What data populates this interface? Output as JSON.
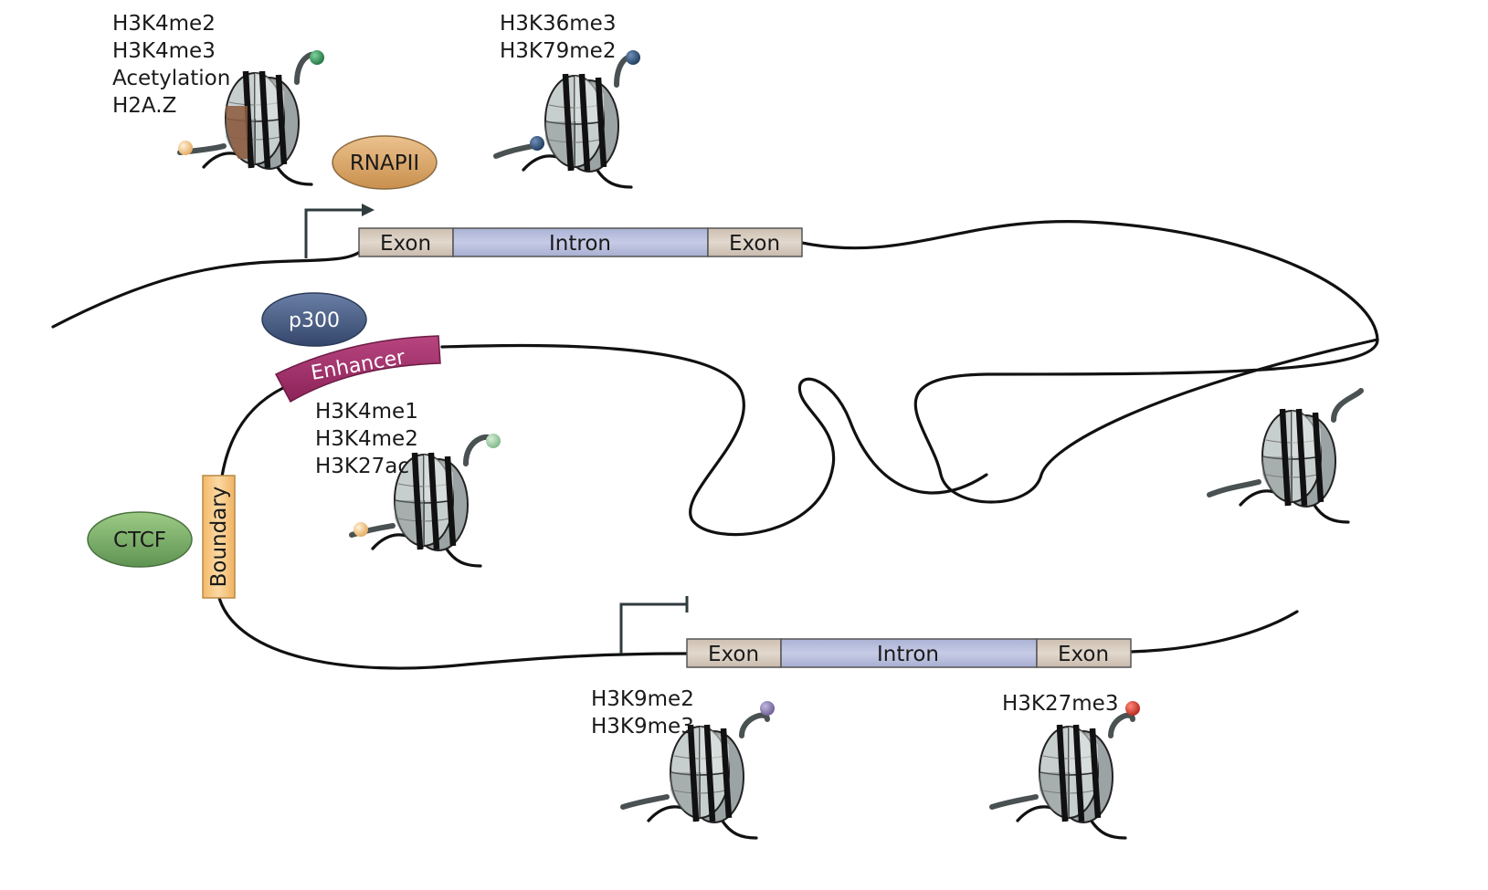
{
  "promoter_marks": [
    "H3K4me2",
    "H3K4me3",
    "Acetylation",
    "H2A.Z"
  ],
  "genebody_marks": [
    "H3K36me3",
    "H3K79me2"
  ],
  "enhancer_marks": [
    "H3K4me1",
    "H3K4me2",
    "H3K27ac"
  ],
  "heterochromatin_marks": [
    "H3K9me2",
    "H3K9me3"
  ],
  "polycomb_marks": [
    "H3K27me3"
  ],
  "proteins": {
    "rnapii": "RNAPII",
    "p300": "p300",
    "ctcf": "CTCF"
  },
  "elements": {
    "enhancer": "Enhancer",
    "boundary": "Boundary"
  },
  "active_gene": {
    "exon1": "Exon",
    "intron": "Intron",
    "exon2": "Exon"
  },
  "repressed_gene": {
    "exon1": "Exon",
    "intron": "Intron",
    "exon2": "Exon"
  },
  "colors": {
    "rnapii": "#d9a76a",
    "p300": "#4f6389",
    "ctcf": "#7fac6a",
    "enhancer": "#a5336f",
    "boundary": "#f7c983",
    "exon": "#d8cbbf",
    "intron": "#b3b9d8",
    "mark_green": "#2e8a53",
    "mark_navy": "#2f4f74",
    "mark_mint": "#98c69e",
    "mark_purple": "#8a7dac",
    "mark_red": "#d63a2f",
    "mark_cream": "#f2c98d"
  }
}
